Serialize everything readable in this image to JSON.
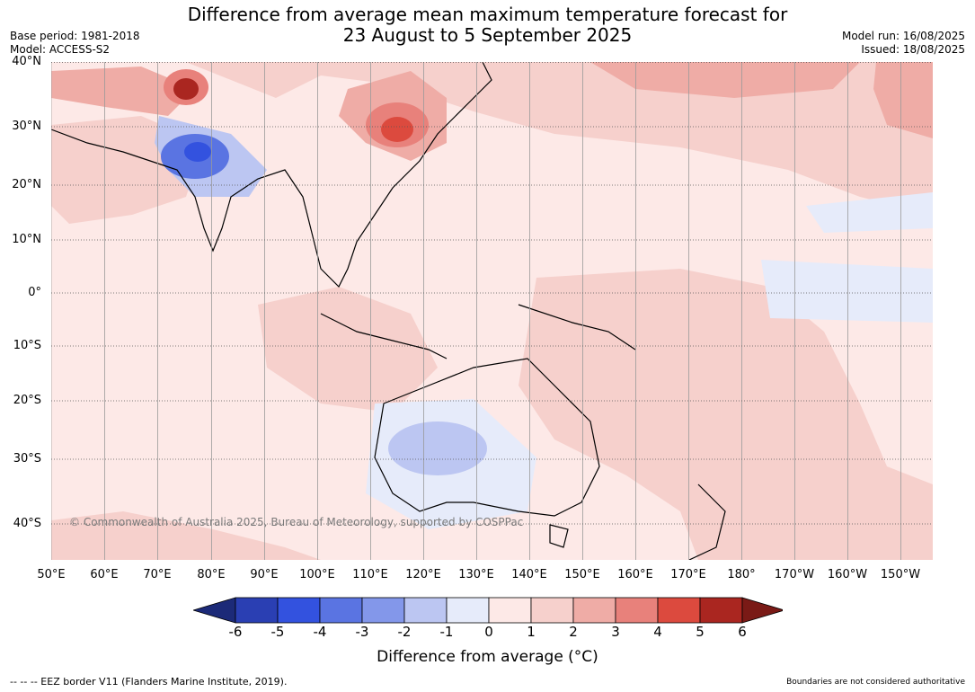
{
  "header": {
    "title_line1": "Difference from average mean maximum temperature forecast for",
    "title_line2": "23 August to 5 September 2025",
    "base_period": "Base period: 1981-2018",
    "model": "Model: ACCESS-S2",
    "model_run": "Model run: 16/08/2025",
    "issued": "Issued: 18/08/2025"
  },
  "map": {
    "latitude_labels": [
      "40°N",
      "30°N",
      "20°N",
      "10°N",
      "0°",
      "10°S",
      "20°S",
      "30°S",
      "40°S"
    ],
    "longitude_labels": [
      "50°E",
      "60°E",
      "70°E",
      "80°E",
      "90°E",
      "100°E",
      "110°E",
      "120°E",
      "130°E",
      "140°E",
      "150°E",
      "160°E",
      "170°E",
      "180°",
      "170°W",
      "160°W",
      "150°W"
    ],
    "copyright": "© Commonwealth of Australia 2025, Bureau of Meteorology, supported by COSPPac",
    "background_color": "#fde9e7"
  },
  "legend": {
    "ticks": [
      "-6",
      "-5",
      "-4",
      "-3",
      "-2",
      "-1",
      "0",
      "1",
      "2",
      "3",
      "4",
      "5",
      "6"
    ],
    "colors": [
      "#1c2a78",
      "#2a3fb3",
      "#3352df",
      "#5a74e2",
      "#8397ea",
      "#bcc6f2",
      "#e6ebfa",
      "#fde9e7",
      "#f6d0cc",
      "#efaca6",
      "#e8817b",
      "#dc4a3e",
      "#aa2620",
      "#7a1a16"
    ],
    "label": "Difference from average (°C)"
  },
  "footer": {
    "eez_note": "--  --  -- EEZ border V11 (Flanders Marine Institute, 2019).",
    "boundaries_note": "Boundaries are not considered authoritative"
  }
}
